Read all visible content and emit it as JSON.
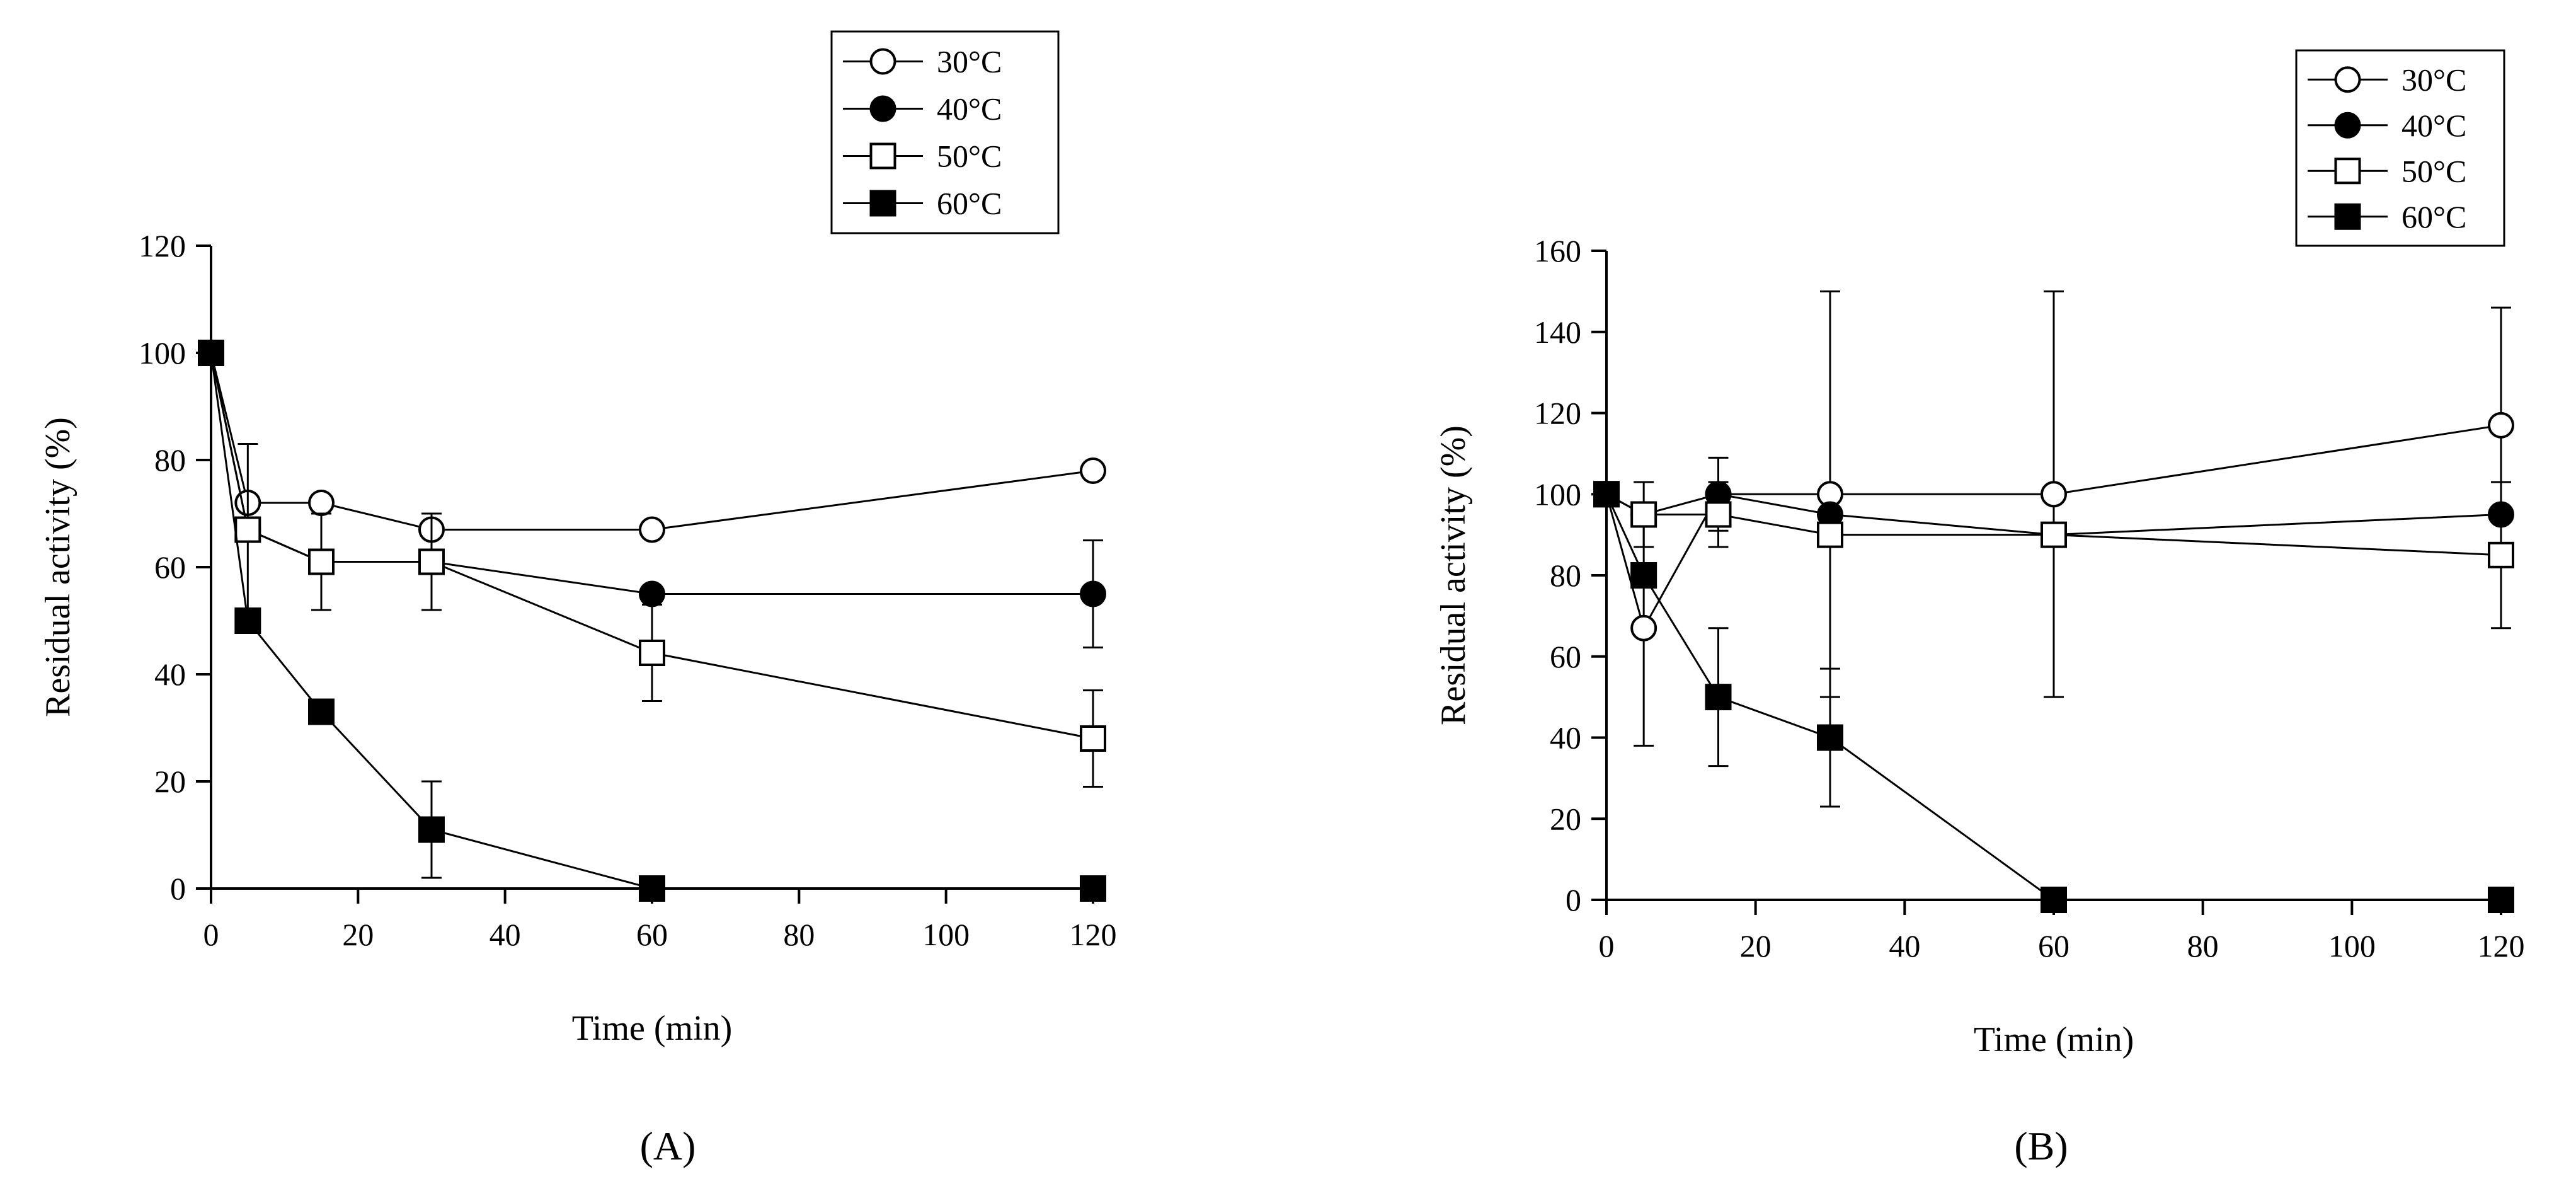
{
  "chart_data": [
    {
      "type": "line",
      "panel_label": "(A)",
      "xlabel": "Time (min)",
      "ylabel": "Residual activity (%)",
      "xlim": [
        0,
        120
      ],
      "ylim": [
        0,
        120
      ],
      "xticks": [
        0,
        20,
        40,
        60,
        80,
        100,
        120
      ],
      "yticks": [
        0,
        20,
        40,
        60,
        80,
        100,
        120
      ],
      "x": [
        0,
        5,
        15,
        30,
        60,
        120
      ],
      "legend_position": "top-right",
      "series": [
        {
          "name": "30°C",
          "marker": "circle-open",
          "values": [
            100,
            72,
            72,
            67,
            67,
            78
          ],
          "err": [
            0,
            0,
            0,
            0,
            0,
            0
          ]
        },
        {
          "name": "40°C",
          "marker": "circle-filled",
          "values": [
            100,
            67,
            61,
            61,
            55,
            55
          ],
          "err": [
            0,
            16,
            0,
            9,
            0,
            10
          ]
        },
        {
          "name": "50°C",
          "marker": "square-open",
          "values": [
            100,
            67,
            61,
            61,
            44,
            28
          ],
          "err": [
            0,
            0,
            9,
            9,
            9,
            9
          ]
        },
        {
          "name": "60°C",
          "marker": "square-filled",
          "values": [
            100,
            50,
            33,
            11,
            0,
            0
          ],
          "err": [
            0,
            0,
            0,
            9,
            0,
            0
          ]
        }
      ]
    },
    {
      "type": "line",
      "panel_label": "(B)",
      "xlabel": "Time (min)",
      "ylabel": "Residual activity (%)",
      "xlim": [
        0,
        120
      ],
      "ylim": [
        0,
        160
      ],
      "xticks": [
        0,
        20,
        40,
        60,
        80,
        100,
        120
      ],
      "yticks": [
        0,
        20,
        40,
        60,
        80,
        100,
        120,
        140,
        160
      ],
      "x": [
        0,
        5,
        15,
        30,
        60,
        120
      ],
      "legend_position": "top-right",
      "series": [
        {
          "name": "30°C",
          "marker": "circle-open",
          "values": [
            100,
            67,
            100,
            100,
            100,
            117
          ],
          "err": [
            0,
            29,
            0,
            50,
            50,
            29
          ]
        },
        {
          "name": "40°C",
          "marker": "circle-filled",
          "values": [
            100,
            95,
            100,
            95,
            90,
            95
          ],
          "err": [
            0,
            0,
            9,
            0,
            0,
            8
          ]
        },
        {
          "name": "50°C",
          "marker": "square-open",
          "values": [
            100,
            95,
            95,
            90,
            90,
            85
          ],
          "err": [
            0,
            8,
            8,
            0,
            0,
            18
          ]
        },
        {
          "name": "60°C",
          "marker": "square-filled",
          "values": [
            100,
            80,
            50,
            40,
            0,
            0
          ],
          "err": [
            0,
            0,
            17,
            17,
            0,
            0
          ]
        }
      ]
    }
  ]
}
